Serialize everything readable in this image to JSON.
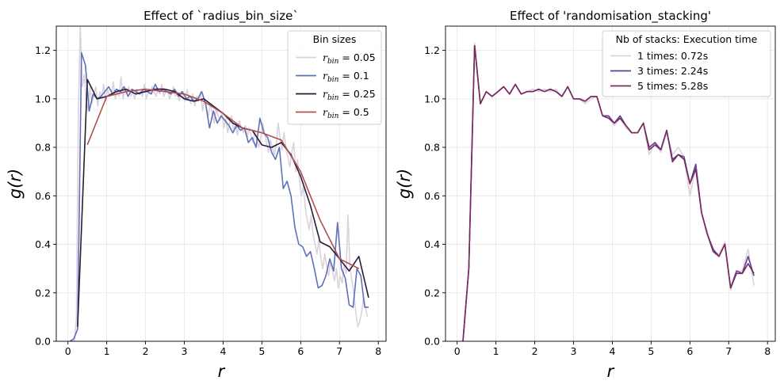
{
  "chart_data": [
    {
      "type": "line",
      "title": "Effect of `radius_bin_size`",
      "xlabel": "r",
      "ylabel": "g(r)",
      "xlim": [
        -0.3,
        8.2
      ],
      "ylim": [
        0,
        1.3
      ],
      "xticks": [
        0,
        1,
        2,
        3,
        4,
        5,
        6,
        7,
        8
      ],
      "yticks": [
        0.0,
        0.2,
        0.4,
        0.6,
        0.8,
        1.0,
        1.2
      ],
      "grid": true,
      "legend": {
        "title": "Bin sizes",
        "placement": "upper right"
      },
      "series": [
        {
          "name": "r_bin = 0.05",
          "label_base": "r",
          "label_sub": "bin",
          "label_value": " = 0.05",
          "color": "#dcd1dd",
          "x": [
            0.07,
            0.12,
            0.17,
            0.22,
            0.27,
            0.32,
            0.37,
            0.42,
            0.47,
            0.52,
            0.57,
            0.62,
            0.67,
            0.72,
            0.77,
            0.82,
            0.87,
            0.92,
            0.97,
            1.02,
            1.07,
            1.12,
            1.17,
            1.22,
            1.27,
            1.32,
            1.37,
            1.42,
            1.47,
            1.52,
            1.57,
            1.62,
            1.67,
            1.72,
            1.77,
            1.82,
            1.87,
            1.92,
            1.97,
            2.02,
            2.07,
            2.12,
            2.17,
            2.22,
            2.27,
            2.32,
            2.37,
            2.42,
            2.47,
            2.52,
            2.57,
            2.62,
            2.67,
            2.72,
            2.77,
            2.82,
            2.87,
            2.92,
            2.97,
            3.02,
            3.07,
            3.12,
            3.17,
            3.22,
            3.27,
            3.32,
            3.37,
            3.42,
            3.47,
            3.52,
            3.57,
            3.62,
            3.67,
            3.72,
            3.77,
            3.82,
            3.87,
            3.92,
            3.97,
            4.02,
            4.07,
            4.12,
            4.17,
            4.22,
            4.27,
            4.32,
            4.37,
            4.42,
            4.47,
            4.52,
            4.57,
            4.62,
            4.67,
            4.72,
            4.77,
            4.82,
            4.87,
            4.92,
            4.97,
            5.02,
            5.07,
            5.12,
            5.17,
            5.22,
            5.27,
            5.32,
            5.37,
            5.42,
            5.47,
            5.52,
            5.57,
            5.62,
            5.67,
            5.72,
            5.77,
            5.82,
            5.87,
            5.92,
            5.97,
            6.02,
            6.07,
            6.12,
            6.17,
            6.22,
            6.27,
            6.32,
            6.37,
            6.42,
            6.47,
            6.52,
            6.57,
            6.62,
            6.67,
            6.72,
            6.77,
            6.82,
            6.87,
            6.92,
            6.97,
            7.02,
            7.07,
            7.12,
            7.17,
            7.22,
            7.27,
            7.32,
            7.37,
            7.42,
            7.47,
            7.52,
            7.57,
            7.62,
            7.67,
            7.72
          ],
          "y": [
            0.0,
            0.0,
            0.0,
            0.1,
            0.95,
            1.3,
            1.05,
            1.1,
            1.0,
            0.95,
            1.05,
            0.98,
            1.02,
            1.05,
            0.97,
            1.03,
            1.0,
            1.06,
            0.99,
            1.04,
            1.01,
            1.02,
            1.07,
            1.0,
            1.03,
            1.01,
            1.09,
            1.0,
            1.04,
            1.02,
            1.05,
            1.01,
            1.03,
            1.0,
            1.04,
            1.02,
            1.03,
            1.01,
            1.06,
            1.0,
            1.03,
            1.02,
            1.05,
            1.03,
            1.01,
            1.04,
            1.02,
            1.06,
            1.01,
            1.03,
            1.04,
            1.0,
            1.02,
            1.05,
            1.01,
            1.03,
            0.99,
            1.03,
            1.01,
            0.99,
            1.04,
            1.0,
            0.98,
            1.02,
            0.97,
            1.01,
            0.99,
            1.03,
            0.95,
            1.0,
            0.96,
            0.93,
            0.98,
            0.94,
            0.9,
            0.96,
            0.93,
            0.91,
            0.94,
            0.88,
            0.92,
            0.86,
            0.9,
            0.93,
            0.87,
            0.9,
            0.85,
            0.91,
            0.88,
            0.86,
            0.89,
            0.84,
            0.88,
            0.85,
            0.82,
            0.87,
            0.83,
            0.8,
            0.84,
            0.9,
            0.86,
            0.82,
            0.78,
            0.83,
            0.8,
            0.77,
            0.81,
            0.9,
            0.84,
            0.79,
            0.86,
            0.8,
            0.76,
            0.72,
            0.78,
            0.82,
            0.7,
            0.75,
            0.66,
            0.6,
            0.64,
            0.55,
            0.5,
            0.46,
            0.52,
            0.44,
            0.4,
            0.36,
            0.42,
            0.34,
            0.3,
            0.36,
            0.31,
            0.27,
            0.33,
            0.29,
            0.25,
            0.3,
            0.22,
            0.27,
            0.24,
            0.32,
            0.28,
            0.52,
            0.3,
            0.25,
            0.2,
            0.12,
            0.06,
            0.08,
            0.12,
            0.18,
            0.14,
            0.1
          ]
        },
        {
          "name": "r_bin = 0.1",
          "label_base": "r",
          "label_sub": "bin",
          "label_value": " = 0.1",
          "color": "#5e72b8",
          "x": [
            0.05,
            0.15,
            0.25,
            0.35,
            0.45,
            0.55,
            0.65,
            0.75,
            0.85,
            0.95,
            1.05,
            1.15,
            1.25,
            1.35,
            1.45,
            1.55,
            1.65,
            1.75,
            1.85,
            1.95,
            2.05,
            2.15,
            2.25,
            2.35,
            2.45,
            2.55,
            2.65,
            2.75,
            2.85,
            2.95,
            3.05,
            3.15,
            3.25,
            3.35,
            3.45,
            3.55,
            3.65,
            3.75,
            3.85,
            3.95,
            4.05,
            4.15,
            4.25,
            4.35,
            4.45,
            4.55,
            4.65,
            4.75,
            4.85,
            4.95,
            5.05,
            5.15,
            5.25,
            5.35,
            5.45,
            5.55,
            5.65,
            5.75,
            5.85,
            5.95,
            6.05,
            6.15,
            6.25,
            6.35,
            6.45,
            6.55,
            6.65,
            6.75,
            6.85,
            6.95,
            7.05,
            7.15,
            7.25,
            7.35,
            7.45,
            7.55,
            7.65,
            7.75
          ],
          "y": [
            0.0,
            0.01,
            0.05,
            1.19,
            1.14,
            0.95,
            1.02,
            1.0,
            1.01,
            1.03,
            1.05,
            1.02,
            1.04,
            1.03,
            1.05,
            1.01,
            1.04,
            1.03,
            1.02,
            1.04,
            1.03,
            1.02,
            1.06,
            1.03,
            1.04,
            1.03,
            1.02,
            1.04,
            1.01,
            1.03,
            1.0,
            1.01,
            0.99,
            1.0,
            1.03,
            0.98,
            0.88,
            0.95,
            0.9,
            0.93,
            0.91,
            0.89,
            0.86,
            0.89,
            0.87,
            0.88,
            0.82,
            0.84,
            0.8,
            0.92,
            0.86,
            0.84,
            0.78,
            0.75,
            0.8,
            0.63,
            0.66,
            0.6,
            0.47,
            0.4,
            0.39,
            0.35,
            0.37,
            0.3,
            0.22,
            0.23,
            0.27,
            0.34,
            0.29,
            0.49,
            0.3,
            0.26,
            0.15,
            0.14,
            0.3,
            0.27,
            0.14,
            0.14
          ]
        },
        {
          "name": "r_bin = 0.25",
          "label_base": "r",
          "label_sub": "bin",
          "label_value": " = 0.25",
          "color": "#2b1a3a",
          "x": [
            0.25,
            0.5,
            0.75,
            1.0,
            1.25,
            1.5,
            1.75,
            2.0,
            2.25,
            2.5,
            2.75,
            3.0,
            3.25,
            3.5,
            3.75,
            4.0,
            4.25,
            4.5,
            4.75,
            5.0,
            5.25,
            5.5,
            5.75,
            6.0,
            6.25,
            6.5,
            6.75,
            7.0,
            7.25,
            7.5,
            7.75
          ],
          "y": [
            0.06,
            1.08,
            1.0,
            1.01,
            1.03,
            1.04,
            1.02,
            1.03,
            1.04,
            1.04,
            1.03,
            1.0,
            0.99,
            1.0,
            0.97,
            0.94,
            0.9,
            0.88,
            0.87,
            0.81,
            0.8,
            0.82,
            0.77,
            0.68,
            0.56,
            0.41,
            0.39,
            0.34,
            0.29,
            0.35,
            0.18
          ]
        },
        {
          "name": "r_bin = 0.5",
          "label_base": "r",
          "label_sub": "bin",
          "label_value": " = 0.5",
          "color": "#b0504e",
          "x": [
            0.5,
            1.0,
            1.5,
            2.0,
            2.5,
            3.0,
            3.5,
            4.0,
            4.5,
            5.0,
            5.5,
            6.0,
            6.5,
            7.0,
            7.5
          ],
          "y": [
            0.81,
            1.01,
            1.03,
            1.04,
            1.03,
            1.02,
            0.99,
            0.94,
            0.88,
            0.86,
            0.83,
            0.7,
            0.5,
            0.34,
            0.3
          ]
        }
      ]
    },
    {
      "type": "line",
      "title": "Effect of 'randomisation_stacking'",
      "xlabel": "r",
      "ylabel": "g(r)",
      "xlim": [
        -0.3,
        8.2
      ],
      "ylim": [
        0,
        1.3
      ],
      "xticks": [
        0,
        1,
        2,
        3,
        4,
        5,
        6,
        7,
        8
      ],
      "yticks": [
        0.0,
        0.2,
        0.4,
        0.6,
        0.8,
        1.0,
        1.2
      ],
      "grid": true,
      "legend": {
        "title": "Nb of stacks: Execution time",
        "placement": "upper right"
      },
      "series": [
        {
          "name": "1 times: 0.72s",
          "color": "#dcd1dd",
          "x": [
            0.15,
            0.3,
            0.45,
            0.6,
            0.75,
            0.9,
            1.05,
            1.2,
            1.35,
            1.5,
            1.65,
            1.8,
            1.95,
            2.1,
            2.25,
            2.4,
            2.55,
            2.7,
            2.85,
            3.0,
            3.15,
            3.3,
            3.45,
            3.6,
            3.75,
            3.9,
            4.05,
            4.2,
            4.35,
            4.5,
            4.65,
            4.8,
            4.95,
            5.1,
            5.25,
            5.4,
            5.55,
            5.7,
            5.85,
            6.0,
            6.15,
            6.3,
            6.45,
            6.6,
            6.75,
            6.9,
            7.05,
            7.2,
            7.35,
            7.5,
            7.65
          ],
          "y": [
            0.0,
            0.3,
            1.23,
            0.98,
            1.03,
            1.01,
            1.03,
            1.05,
            1.02,
            1.06,
            1.02,
            1.03,
            1.04,
            1.03,
            1.04,
            1.03,
            1.04,
            1.01,
            1.05,
            1.0,
            1.0,
            0.98,
            1.0,
            1.01,
            0.93,
            0.93,
            0.89,
            0.92,
            0.88,
            0.86,
            0.86,
            0.9,
            0.77,
            0.82,
            0.78,
            0.86,
            0.77,
            0.8,
            0.76,
            0.6,
            0.72,
            0.53,
            0.45,
            0.37,
            0.36,
            0.41,
            0.21,
            0.29,
            0.29,
            0.38,
            0.23
          ]
        },
        {
          "name": "3 times: 2.24s",
          "color": "#5b3f96",
          "x": [
            0.15,
            0.3,
            0.45,
            0.6,
            0.75,
            0.9,
            1.05,
            1.2,
            1.35,
            1.5,
            1.65,
            1.8,
            1.95,
            2.1,
            2.25,
            2.4,
            2.55,
            2.7,
            2.85,
            3.0,
            3.15,
            3.3,
            3.45,
            3.6,
            3.75,
            3.9,
            4.05,
            4.2,
            4.35,
            4.5,
            4.65,
            4.8,
            4.95,
            5.1,
            5.25,
            5.4,
            5.55,
            5.7,
            5.85,
            6.0,
            6.15,
            6.3,
            6.45,
            6.6,
            6.75,
            6.9,
            7.05,
            7.2,
            7.35,
            7.5,
            7.65
          ],
          "y": [
            0.0,
            0.3,
            1.22,
            0.98,
            1.03,
            1.01,
            1.03,
            1.05,
            1.02,
            1.06,
            1.02,
            1.03,
            1.03,
            1.04,
            1.03,
            1.04,
            1.03,
            1.01,
            1.05,
            1.0,
            1.0,
            0.99,
            1.01,
            1.01,
            0.93,
            0.93,
            0.9,
            0.93,
            0.89,
            0.86,
            0.86,
            0.9,
            0.8,
            0.82,
            0.79,
            0.87,
            0.75,
            0.77,
            0.76,
            0.65,
            0.73,
            0.53,
            0.44,
            0.38,
            0.35,
            0.4,
            0.22,
            0.29,
            0.28,
            0.35,
            0.27
          ]
        },
        {
          "name": "5 times: 5.28s",
          "color": "#7a2a5c",
          "x": [
            0.15,
            0.3,
            0.45,
            0.6,
            0.75,
            0.9,
            1.05,
            1.2,
            1.35,
            1.5,
            1.65,
            1.8,
            1.95,
            2.1,
            2.25,
            2.4,
            2.55,
            2.7,
            2.85,
            3.0,
            3.15,
            3.3,
            3.45,
            3.6,
            3.75,
            3.9,
            4.05,
            4.2,
            4.35,
            4.5,
            4.65,
            4.8,
            4.95,
            5.1,
            5.25,
            5.4,
            5.55,
            5.7,
            5.85,
            6.0,
            6.15,
            6.3,
            6.45,
            6.6,
            6.75,
            6.9,
            7.05,
            7.2,
            7.35,
            7.5,
            7.65
          ],
          "y": [
            0.0,
            0.3,
            1.22,
            0.98,
            1.03,
            1.01,
            1.03,
            1.05,
            1.02,
            1.06,
            1.02,
            1.03,
            1.03,
            1.04,
            1.03,
            1.04,
            1.03,
            1.01,
            1.05,
            1.0,
            1.0,
            0.99,
            1.01,
            1.01,
            0.93,
            0.92,
            0.9,
            0.92,
            0.89,
            0.86,
            0.86,
            0.9,
            0.79,
            0.81,
            0.79,
            0.87,
            0.74,
            0.77,
            0.75,
            0.65,
            0.71,
            0.53,
            0.44,
            0.37,
            0.35,
            0.4,
            0.22,
            0.28,
            0.28,
            0.32,
            0.28
          ]
        }
      ]
    }
  ]
}
